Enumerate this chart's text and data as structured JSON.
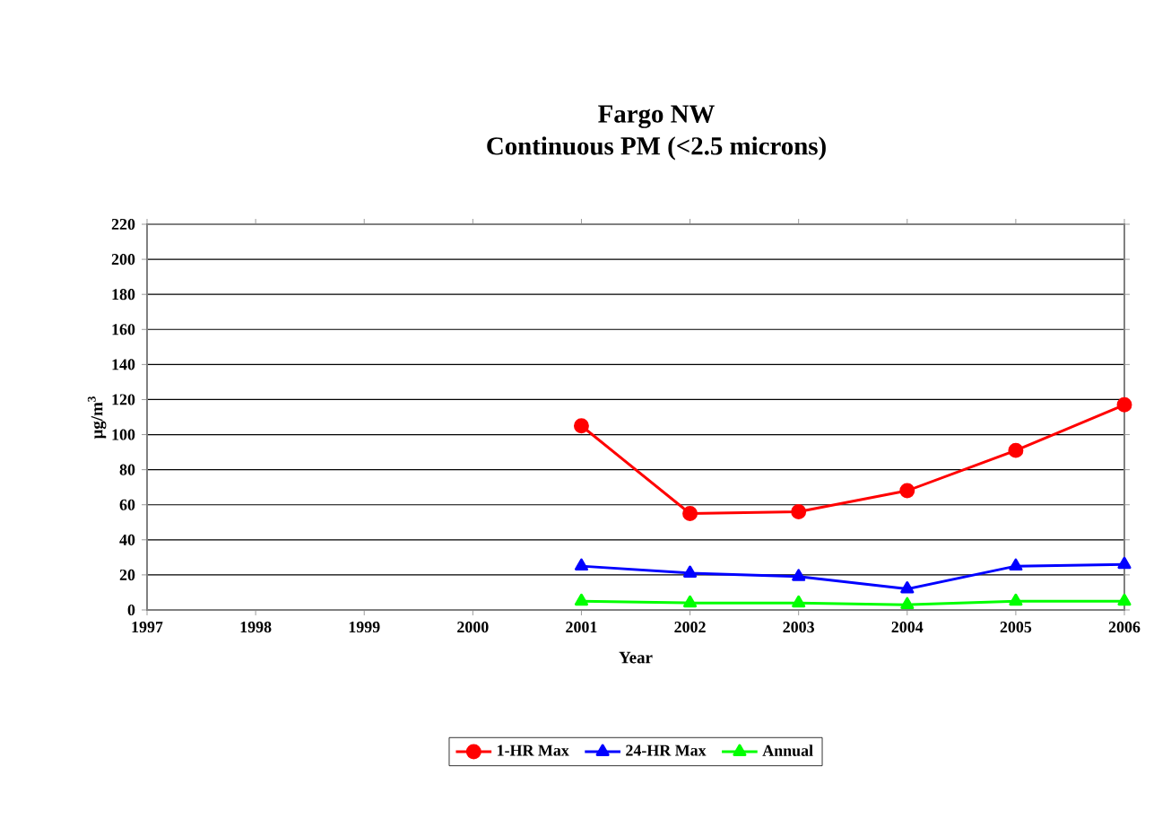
{
  "chart_data": {
    "type": "line",
    "title": "Fargo NW",
    "subtitle": "Continuous PM (<2.5 microns)",
    "xlabel": "Year",
    "ylabel": "μg/m$^{3}$",
    "categories": [
      "1997",
      "1998",
      "1999",
      "2000",
      "2001",
      "2002",
      "2003",
      "2004",
      "2005",
      "2006"
    ],
    "series": [
      {
        "name": "1-HR Max",
        "color": "#ff0000",
        "marker": "circle",
        "values": [
          null,
          null,
          null,
          null,
          105,
          55,
          56,
          68,
          91,
          117
        ]
      },
      {
        "name": "24-HR Max",
        "color": "#0000ff",
        "marker": "triangle",
        "values": [
          null,
          null,
          null,
          null,
          25,
          21,
          19,
          12,
          25,
          26
        ]
      },
      {
        "name": "Annual",
        "color": "#00ff00",
        "marker": "triangle",
        "values": [
          null,
          null,
          null,
          null,
          5,
          4,
          4,
          3,
          5,
          5
        ]
      }
    ],
    "ylim": [
      0,
      220
    ],
    "yticks": [
      0,
      20,
      40,
      60,
      80,
      100,
      120,
      140,
      160,
      180,
      200,
      220
    ],
    "grid": "y",
    "legend": "bottom"
  }
}
